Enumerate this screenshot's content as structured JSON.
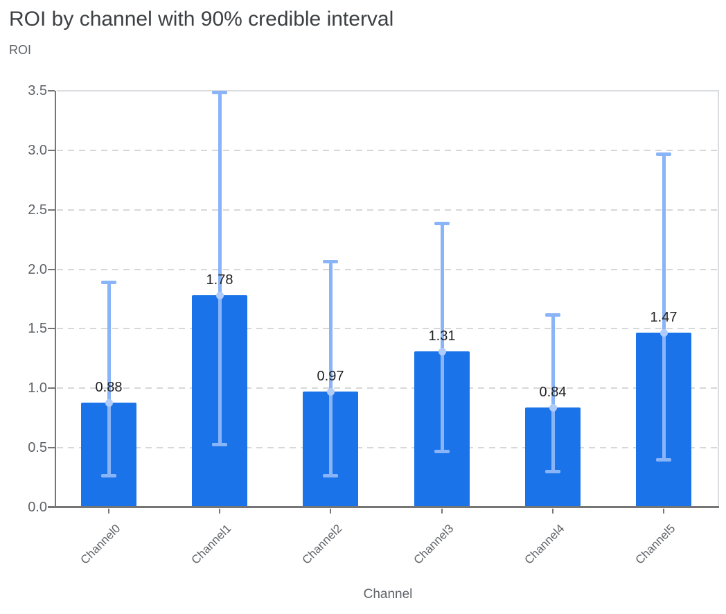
{
  "page": {
    "title": "ROI by channel with 90% credible interval",
    "y_axis_title": "ROI",
    "x_axis_title": "Channel"
  },
  "chart_data": {
    "type": "bar",
    "title": "ROI by channel with 90% credible interval",
    "xlabel": "Channel",
    "ylabel": "ROI",
    "categories": [
      "Channel0",
      "Channel1",
      "Channel2",
      "Channel3",
      "Channel4",
      "Channel5"
    ],
    "values": [
      0.88,
      1.78,
      0.97,
      1.31,
      0.84,
      1.47
    ],
    "value_labels": [
      "0.88",
      "1.78",
      "0.97",
      "1.31",
      "0.84",
      "1.47"
    ],
    "error_kind": "90% credible interval",
    "error_low": [
      0.27,
      0.53,
      0.27,
      0.47,
      0.3,
      0.4
    ],
    "error_high": [
      1.89,
      3.49,
      2.07,
      2.39,
      1.62,
      2.97
    ],
    "ylim": [
      0,
      3.5
    ],
    "ytick_labels": [
      "0.0",
      "0.5",
      "1.0",
      "1.5",
      "2.0",
      "2.5",
      "3.0",
      "3.5"
    ],
    "grid": "dashed-horizontal",
    "legend": "none",
    "colors": {
      "bar": "#1a73e8",
      "error_bar": "#8ab4f8",
      "error_dot": "#aecbfa",
      "axis": "#757575",
      "gridline": "#d7d7d7",
      "frame": "#dadce0",
      "title_text": "#3c4043",
      "label_text": "#5f6368",
      "value_text": "#202124"
    }
  }
}
